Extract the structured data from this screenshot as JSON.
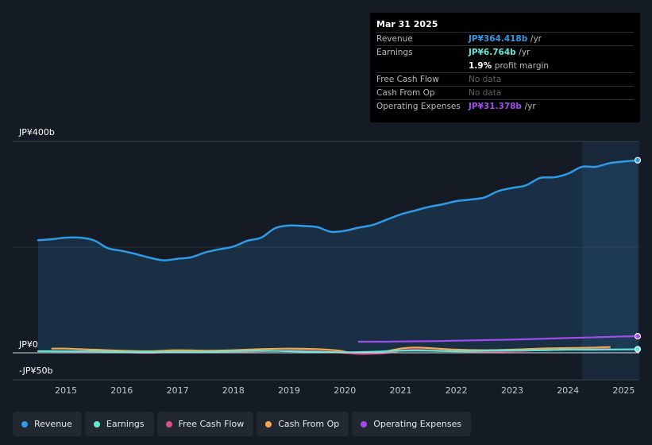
{
  "colors": {
    "revenue": "#2f9be8",
    "earnings": "#5ee8d6",
    "free_cash_flow": "#d64f88",
    "cash_from_op": "#f2a94f",
    "operating_expenses": "#a24bf0"
  },
  "tooltip": {
    "date": "Mar 31 2025",
    "revenue_label": "Revenue",
    "revenue_value": "JP¥364.418b",
    "revenue_unit": "/yr",
    "earnings_label": "Earnings",
    "earnings_value": "JP¥6.764b",
    "earnings_unit": "/yr",
    "profit_margin_value": "1.9%",
    "profit_margin_label": "profit margin",
    "fcf_label": "Free Cash Flow",
    "fcf_value": "No data",
    "cfo_label": "Cash From Op",
    "cfo_value": "No data",
    "opex_label": "Operating Expenses",
    "opex_value": "JP¥31.378b",
    "opex_unit": "/yr"
  },
  "legend": [
    {
      "label": "Revenue",
      "color_key": "revenue"
    },
    {
      "label": "Earnings",
      "color_key": "earnings"
    },
    {
      "label": "Free Cash Flow",
      "color_key": "free_cash_flow"
    },
    {
      "label": "Cash From Op",
      "color_key": "cash_from_op"
    },
    {
      "label": "Operating Expenses",
      "color_key": "operating_expenses"
    }
  ],
  "chart_data": {
    "type": "line",
    "y_axis_labels": [
      "JP¥400b",
      "JP¥0",
      "-JP¥50b"
    ],
    "x_tick_labels": [
      "2015",
      "2016",
      "2017",
      "2018",
      "2019",
      "2020",
      "2021",
      "2022",
      "2023",
      "2024",
      "2025"
    ],
    "x_ticks": [
      2015,
      2016,
      2017,
      2018,
      2019,
      2020,
      2021,
      2022,
      2023,
      2024,
      2025
    ],
    "xlim": [
      2014.5,
      2025.25
    ],
    "ylim": [
      -50,
      400
    ],
    "highlight_from": 2024.25,
    "series": [
      {
        "name": "Revenue",
        "color_key": "revenue",
        "filled": true,
        "x": [
          2014.5,
          2014.75,
          2015.0,
          2015.25,
          2015.5,
          2015.75,
          2016.0,
          2016.25,
          2016.5,
          2016.75,
          2017.0,
          2017.25,
          2017.5,
          2017.75,
          2018.0,
          2018.25,
          2018.5,
          2018.75,
          2019.0,
          2019.25,
          2019.5,
          2019.75,
          2020.0,
          2020.25,
          2020.5,
          2020.75,
          2021.0,
          2021.25,
          2021.5,
          2021.75,
          2022.0,
          2022.25,
          2022.5,
          2022.75,
          2023.0,
          2023.25,
          2023.5,
          2023.75,
          2024.0,
          2024.25,
          2024.5,
          2024.75,
          2025.0,
          2025.25
        ],
        "values": [
          213,
          215,
          218,
          218,
          213,
          198,
          193,
          187,
          180,
          175,
          178,
          181,
          190,
          196,
          201,
          212,
          218,
          236,
          241,
          240,
          238,
          229,
          231,
          237,
          242,
          252,
          262,
          269,
          276,
          281,
          287,
          290,
          294,
          306,
          312,
          317,
          331,
          332,
          339,
          352,
          352,
          359,
          362,
          364.4
        ]
      },
      {
        "name": "Operating Expenses",
        "color_key": "operating_expenses",
        "x": [
          2020.25,
          2020.5,
          2020.75,
          2021.0,
          2021.5,
          2022.0,
          2022.5,
          2023.0,
          2023.5,
          2024.0,
          2024.5,
          2025.0,
          2025.25
        ],
        "values": [
          21,
          21,
          21,
          21.5,
          22,
          23,
          24,
          25,
          26.5,
          28,
          29.5,
          31,
          31.4
        ]
      },
      {
        "name": "Cash From Op",
        "color_key": "cash_from_op",
        "x": [
          2014.75,
          2015.0,
          2015.5,
          2016.0,
          2016.5,
          2017.0,
          2017.5,
          2018.0,
          2018.5,
          2019.0,
          2019.5,
          2019.9,
          2020.15,
          2020.5,
          2020.75,
          2021.0,
          2021.25,
          2021.5,
          2022.0,
          2022.5,
          2023.0,
          2023.5,
          2024.0,
          2024.5,
          2024.75
        ],
        "values": [
          8,
          8,
          6,
          4,
          3,
          5,
          4,
          5,
          7,
          8,
          7,
          4,
          -1,
          -1,
          3,
          8,
          10,
          9,
          6,
          5,
          6,
          8,
          9,
          10,
          11
        ]
      },
      {
        "name": "Free Cash Flow",
        "color_key": "free_cash_flow",
        "x": [
          2014.75,
          2015.5,
          2016.0,
          2016.5,
          2017.0,
          2017.5,
          2018.0,
          2018.5,
          2019.0,
          2019.5,
          2020.0,
          2020.3,
          2020.75,
          2021.0,
          2021.25,
          2021.5,
          2022.0,
          2022.5,
          2023.0,
          2023.5,
          2024.0,
          2024.5,
          2024.75
        ],
        "values": [
          3,
          2,
          1,
          0,
          2,
          1,
          2,
          3,
          4,
          3,
          0,
          -2,
          0,
          4,
          6,
          5,
          3,
          2,
          3,
          5,
          6,
          7,
          8
        ]
      },
      {
        "name": "Earnings",
        "color_key": "earnings",
        "x": [
          2014.5,
          2015.0,
          2015.5,
          2016.0,
          2016.5,
          2017.0,
          2017.5,
          2018.0,
          2018.5,
          2019.0,
          2019.5,
          2020.0,
          2020.5,
          2021.0,
          2021.5,
          2022.0,
          2022.5,
          2023.0,
          2023.5,
          2024.0,
          2024.5,
          2025.0,
          2025.25
        ],
        "values": [
          3,
          3,
          3,
          2,
          2,
          2,
          2,
          3,
          4,
          3,
          2,
          1,
          2,
          4,
          4,
          3,
          4,
          5,
          5,
          6,
          6,
          6.5,
          6.8
        ]
      }
    ]
  }
}
